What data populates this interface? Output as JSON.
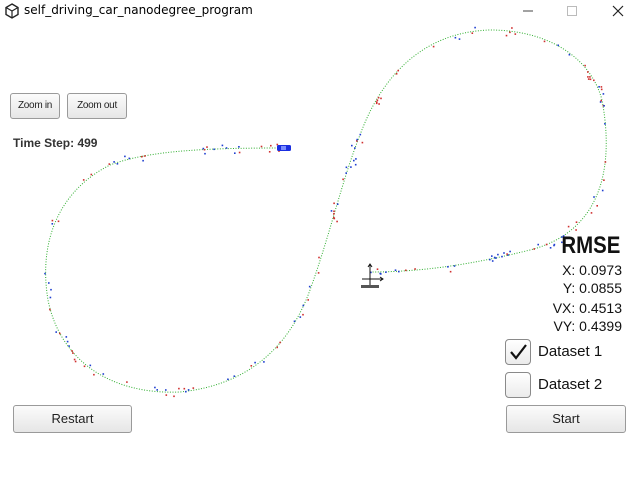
{
  "window": {
    "title": "self_driving_car_nanodegree_program",
    "app_icon": "unity-icon",
    "controls": [
      "minimize-icon",
      "maximize-icon",
      "close-icon"
    ]
  },
  "toolbar": {
    "zoom_in_label": "Zoom in",
    "zoom_out_label": "Zoom out"
  },
  "status": {
    "time_step": "Time Step: 499"
  },
  "rmse": {
    "title": "RMSE",
    "x": "X: 0.0973",
    "y": "Y: 0.0855",
    "vx": "VX: 0.4513",
    "vy": "VY: 0.4399"
  },
  "datasets": [
    {
      "label": "Dataset 1",
      "checked": true
    },
    {
      "label": "Dataset 2",
      "checked": false
    }
  ],
  "actions": {
    "restart_label": "Restart",
    "start_label": "Start"
  },
  "scene": {
    "car_icon": "car-icon",
    "sensor_icon": "sensor-icon",
    "colors": {
      "track": "#2fae2f",
      "radar": "#1f3fd0",
      "lidar": "#d03030",
      "car": "#1a2ee0"
    }
  }
}
